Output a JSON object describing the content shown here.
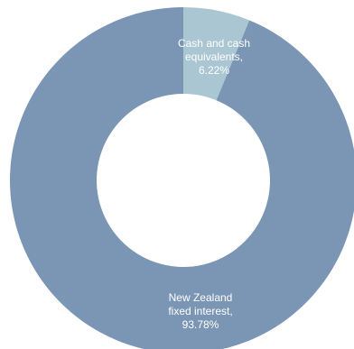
{
  "chart_data": {
    "type": "pie",
    "donut": true,
    "title": "",
    "slices": [
      {
        "label": "Cash and cash equivalents",
        "value": 6.22,
        "label_lines": [
          "Cash and cash",
          "equivalents,",
          "6.22%"
        ],
        "color": "#a9c6d2"
      },
      {
        "label": "New Zealand fixed interest",
        "value": 93.78,
        "label_lines": [
          "New Zealand",
          "fixed interest,",
          "93.78%"
        ],
        "color": "#7b95b4"
      }
    ],
    "legend": "none",
    "start_angle": "top, clockwise"
  }
}
